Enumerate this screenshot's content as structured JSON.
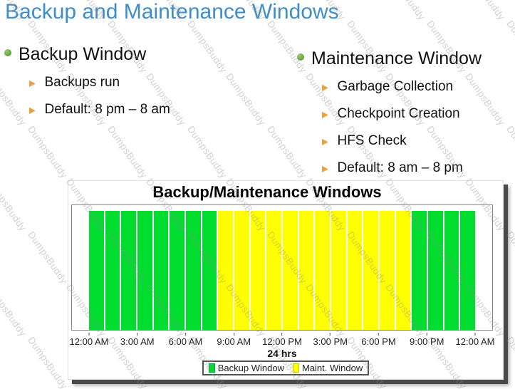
{
  "slide": {
    "title": "Backup and Maintenance Windows",
    "title_color": "#3E8EC9"
  },
  "watermark": {
    "text": "DumpsBuddy"
  },
  "columns": [
    {
      "heading": "Backup Window",
      "items": [
        "Backups run",
        "Default: 8 pm – 8 am"
      ]
    },
    {
      "heading": "Maintenance Window",
      "items": [
        "Garbage Collection",
        "Checkpoint Creation",
        "HFS Check",
        "Default: 8 am – 8 pm"
      ]
    }
  ],
  "chart_data": {
    "type": "bar",
    "title": "Backup/Maintenance Windows",
    "xlabel": "24 hrs",
    "ylabel": "",
    "ylim": [
      0,
      1
    ],
    "grid": false,
    "legend_position": "bottom",
    "x_ticks": [
      "12:00 AM",
      "3:00 AM",
      "6:00 AM",
      "9:00 AM",
      "12:00 PM",
      "3:00 PM",
      "6:00 PM",
      "9:00 PM",
      "12:00 AM"
    ],
    "bar_unit": "1 hour",
    "bars": [
      "backup",
      "backup",
      "backup",
      "backup",
      "backup",
      "backup",
      "backup",
      "backup",
      "maint",
      "maint",
      "maint",
      "maint",
      "maint",
      "maint",
      "maint",
      "maint",
      "maint",
      "maint",
      "maint",
      "maint",
      "backup",
      "backup",
      "backup",
      "backup"
    ],
    "bar_values": [
      1,
      1,
      1,
      1,
      1,
      1,
      1,
      1,
      1,
      1,
      1,
      1,
      1,
      1,
      1,
      1,
      1,
      1,
      1,
      1,
      1,
      1,
      1,
      1
    ],
    "colors": {
      "backup": "#00DD2E",
      "maint": "#FFFF00"
    },
    "legend": [
      {
        "key": "backup",
        "label": "Backup Window"
      },
      {
        "key": "maint",
        "label": "Maint. Window"
      }
    ],
    "windows": [
      {
        "name": "Backup Window",
        "range": "8 pm – 8 am"
      },
      {
        "name": "Maint. Window",
        "range": "8 am – 8 pm"
      }
    ]
  }
}
